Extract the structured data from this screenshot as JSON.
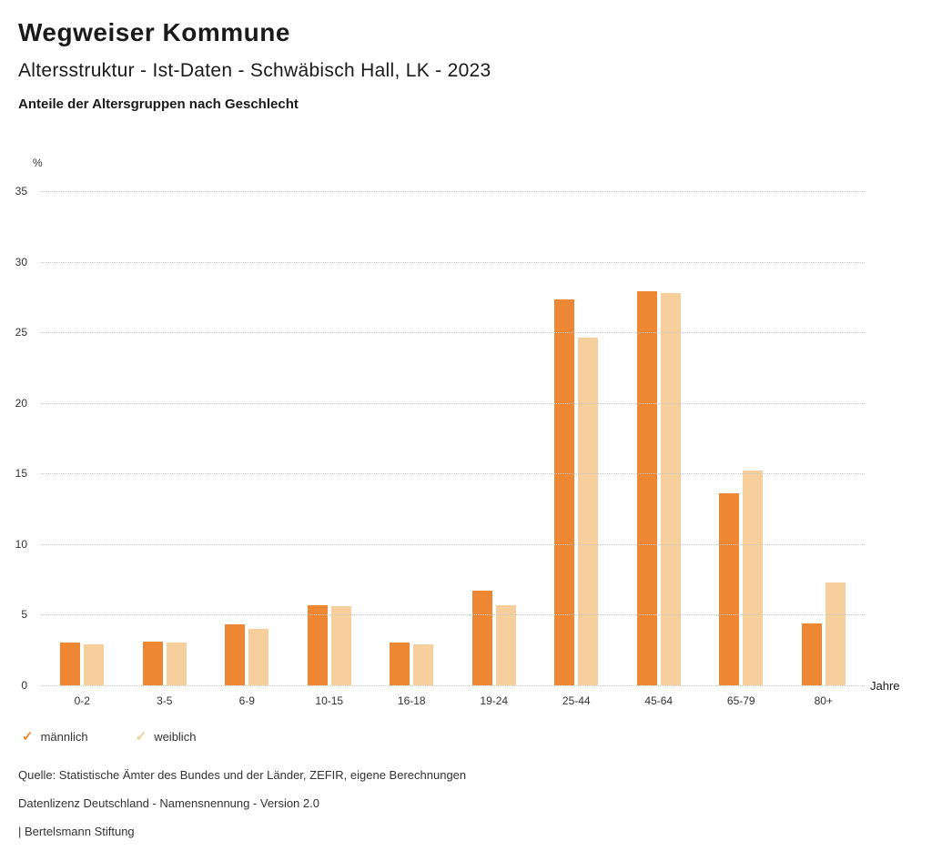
{
  "header": {
    "title": "Wegweiser Kommune",
    "subtitle": "Altersstruktur - Ist-Daten - Schwäbisch Hall, LK - 2023",
    "chart_title": "Anteile der Altersgruppen nach Geschlecht"
  },
  "chart_data": {
    "type": "bar",
    "title": "Anteile der Altersgruppen nach Geschlecht",
    "categories": [
      "0-2",
      "3-5",
      "6-9",
      "10-15",
      "16-18",
      "19-24",
      "25-44",
      "45-64",
      "65-79",
      "80+"
    ],
    "series": [
      {
        "name": "männlich",
        "color": "#ED8733",
        "values": [
          3.0,
          3.1,
          4.3,
          5.7,
          3.0,
          6.7,
          27.3,
          27.9,
          13.6,
          4.4
        ]
      },
      {
        "name": "weiblich",
        "color": "#F7CF9D",
        "values": [
          2.9,
          3.0,
          4.0,
          5.6,
          2.9,
          5.7,
          24.6,
          27.8,
          15.2,
          7.3
        ]
      }
    ],
    "xlabel": "Jahre",
    "ylabel": "%",
    "ylim": [
      0,
      35
    ],
    "yticks": [
      0,
      5,
      10,
      15,
      20,
      25,
      30,
      35
    ],
    "grid": "horizontal-dotted",
    "legend_position": "bottom-left"
  },
  "axes": {
    "y_unit_label": "%",
    "x_unit_label": "Jahre"
  },
  "legend": {
    "items": [
      {
        "label": "männlich",
        "color": "#ED8733"
      },
      {
        "label": "weiblich",
        "color": "#F7CF9D"
      }
    ]
  },
  "footer": {
    "source": "Quelle: Statistische Ämter des Bundes und der Länder, ZEFIR, eigene Berechnungen",
    "license": "Datenlizenz Deutschland - Namensnennung - Version 2.0",
    "attribution": "| Bertelsmann Stiftung"
  }
}
